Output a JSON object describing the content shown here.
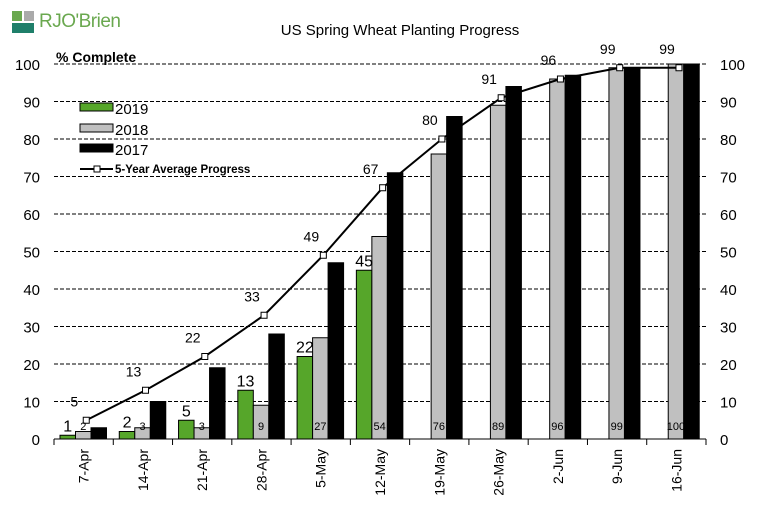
{
  "logo": {
    "text": "RJO'Brien",
    "colors": [
      "#2e8b57",
      "#6aa84f",
      "#999999"
    ]
  },
  "chart_data": {
    "type": "bar",
    "title": "US Spring Wheat Planting Progress",
    "ylabel": "% Complete",
    "ylim": [
      0,
      100
    ],
    "yticks": [
      0,
      10,
      20,
      30,
      40,
      50,
      60,
      70,
      80,
      90,
      100
    ],
    "grid": true,
    "legend_placement": "top-left",
    "categories": [
      "7-Apr",
      "14-Apr",
      "21-Apr",
      "28-Apr",
      "5-May",
      "12-May",
      "19-May",
      "26-May",
      "2-Jun",
      "9-Jun",
      "16-Jun"
    ],
    "series": [
      {
        "name": "2019",
        "kind": "bar",
        "color": "#56a62a",
        "values": [
          1,
          2,
          5,
          13,
          22,
          45,
          null,
          null,
          null,
          null,
          null
        ],
        "labels": true
      },
      {
        "name": "2018",
        "kind": "bar",
        "color": "#c0c0c0",
        "values": [
          2,
          3,
          3,
          9,
          27,
          54,
          76,
          89,
          96,
          99,
          100
        ],
        "labels": true
      },
      {
        "name": "2017",
        "kind": "bar",
        "color": "#000000",
        "values": [
          3,
          10,
          19,
          28,
          47,
          71,
          86,
          94,
          97,
          99,
          100
        ],
        "labels": false
      },
      {
        "name": "5-Year Average Progress",
        "kind": "line",
        "color": "#000000",
        "values": [
          5,
          13,
          22,
          33,
          49,
          67,
          80,
          91,
          96,
          99,
          99
        ],
        "labels": true
      }
    ]
  }
}
